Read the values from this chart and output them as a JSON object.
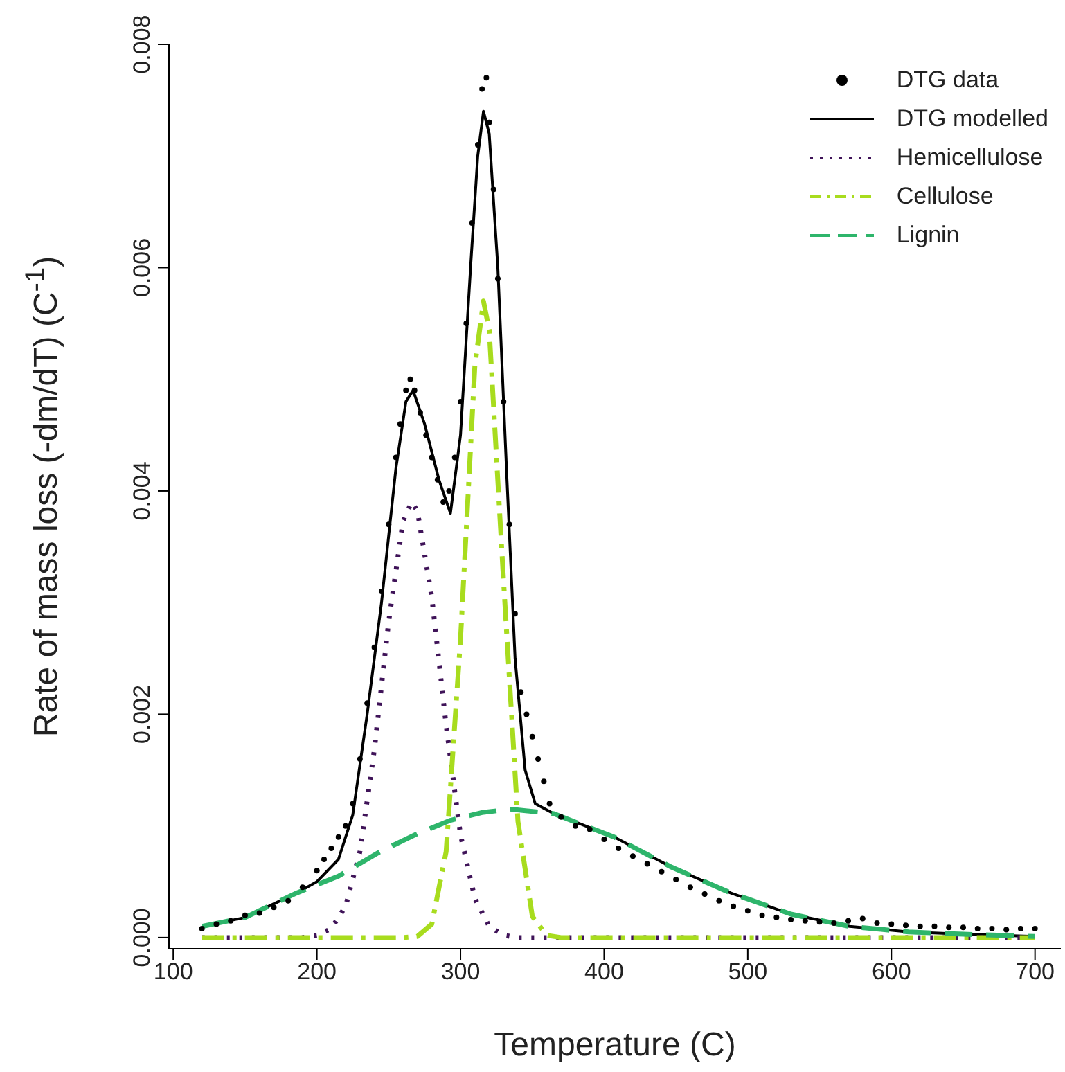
{
  "chart_data": {
    "type": "line",
    "xlabel": "Temperature (C)",
    "ylabel": "Rate of mass loss (-dm/dT) (C$^{-1}$)",
    "xlim": [
      97,
      718
    ],
    "ylim": [
      -0.0001,
      0.008
    ],
    "xticks": [
      100,
      200,
      300,
      400,
      500,
      600,
      700
    ],
    "yticks": [
      {
        "value": 0,
        "label": "0.000"
      },
      {
        "value": 0.002,
        "label": "0.002"
      },
      {
        "value": 0.004,
        "label": "0.004"
      },
      {
        "value": 0.006,
        "label": "0.006"
      },
      {
        "value": 0.008,
        "label": "0.008"
      }
    ],
    "grid": false,
    "legend": "top right",
    "series": [
      {
        "name": "DTG data",
        "type": "scatter",
        "marker": "circle",
        "color": "#000000",
        "x": [
          120,
          130,
          140,
          150,
          160,
          170,
          180,
          190,
          200,
          205,
          210,
          215,
          220,
          225,
          230,
          235,
          240,
          245,
          250,
          255,
          258,
          262,
          265,
          268,
          272,
          276,
          280,
          284,
          288,
          292,
          296,
          300,
          304,
          308,
          312,
          315,
          318,
          320,
          323,
          326,
          330,
          334,
          338,
          342,
          346,
          350,
          354,
          358,
          362,
          370,
          380,
          390,
          400,
          410,
          420,
          430,
          440,
          450,
          460,
          470,
          480,
          490,
          500,
          510,
          520,
          530,
          540,
          550,
          560,
          570,
          580,
          590,
          600,
          610,
          620,
          630,
          640,
          650,
          660,
          670,
          680,
          690,
          700
        ],
        "values": [
          8e-05,
          0.00012,
          0.00015,
          0.0002,
          0.00022,
          0.00027,
          0.00033,
          0.00045,
          0.0006,
          0.0007,
          0.0008,
          0.0009,
          0.001,
          0.0012,
          0.0016,
          0.0021,
          0.0026,
          0.0031,
          0.0037,
          0.0043,
          0.0046,
          0.0049,
          0.005,
          0.0049,
          0.0047,
          0.0045,
          0.0043,
          0.0041,
          0.0039,
          0.004,
          0.0043,
          0.0048,
          0.0055,
          0.0064,
          0.0071,
          0.0076,
          0.0077,
          0.0073,
          0.0067,
          0.0059,
          0.0048,
          0.0037,
          0.0029,
          0.0022,
          0.002,
          0.0018,
          0.0016,
          0.0014,
          0.0012,
          0.00108,
          0.001,
          0.00097,
          0.00088,
          0.0008,
          0.00073,
          0.00066,
          0.00059,
          0.00052,
          0.00045,
          0.00039,
          0.00033,
          0.00028,
          0.00024,
          0.0002,
          0.00018,
          0.00016,
          0.00015,
          0.00014,
          0.00013,
          0.00015,
          0.00017,
          0.00013,
          0.00012,
          0.00011,
          0.0001,
          0.0001,
          9e-05,
          9e-05,
          8e-05,
          8e-05,
          7e-05,
          8e-05,
          8e-05
        ]
      },
      {
        "name": "DTG modelled",
        "line_style": "solid",
        "color": "#000000",
        "x": [
          120,
          150,
          186,
          200,
          215,
          225,
          235,
          245,
          255,
          262,
          267,
          275,
          285,
          293,
          300,
          307,
          312,
          316,
          320,
          326,
          332,
          338,
          345,
          352,
          365,
          407,
          447,
          488,
          530,
          571,
          612,
          650,
          700
        ],
        "values": [
          0.0001,
          0.00018,
          0.0004,
          0.0005,
          0.0007,
          0.0011,
          0.002,
          0.003,
          0.0042,
          0.0048,
          0.0049,
          0.0046,
          0.0041,
          0.0038,
          0.0045,
          0.006,
          0.007,
          0.0074,
          0.0072,
          0.006,
          0.0042,
          0.0025,
          0.0015,
          0.0012,
          0.00111,
          0.0009,
          0.00063,
          0.0004,
          0.00021,
          0.0001,
          5e-05,
          3e-05,
          1e-05
        ]
      },
      {
        "name": "Hemicellulose",
        "line_style": "dotted",
        "color": "#3f1358",
        "x": [
          120,
          190,
          200,
          210,
          220,
          230,
          240,
          250,
          260,
          266,
          270,
          280,
          290,
          300,
          310,
          320,
          330,
          340,
          700
        ],
        "values": [
          0,
          0,
          2e-05,
          8e-05,
          0.00028,
          0.00077,
          0.00168,
          0.00283,
          0.00373,
          0.0039,
          0.00382,
          0.00305,
          0.0019,
          0.00092,
          0.00035,
          0.0001,
          2e-05,
          0,
          0
        ]
      },
      {
        "name": "Cellulose",
        "line_style": "dashdot",
        "color": "#a8dc1e",
        "x": [
          120,
          260,
          270,
          280,
          290,
          300,
          310,
          316,
          320,
          330,
          340,
          350,
          360,
          370,
          700
        ],
        "values": [
          0,
          0,
          1e-05,
          0.00012,
          0.00077,
          0.00267,
          0.00512,
          0.0057,
          0.00544,
          0.00319,
          0.00104,
          0.00019,
          2e-05,
          0,
          0
        ]
      },
      {
        "name": "Lignin",
        "line_style": "dashed",
        "color": "#2eb56b",
        "x": [
          120,
          150,
          186,
          215,
          244,
          270,
          293,
          315,
          335,
          365,
          407,
          447,
          488,
          530,
          571,
          612,
          650,
          700
        ],
        "values": [
          0.0001,
          0.00018,
          0.0004,
          0.00055,
          0.00077,
          0.00093,
          0.00105,
          0.00112,
          0.00115,
          0.00111,
          0.0009,
          0.00063,
          0.0004,
          0.00021,
          0.0001,
          5e-05,
          3e-05,
          1e-05
        ]
      }
    ]
  }
}
